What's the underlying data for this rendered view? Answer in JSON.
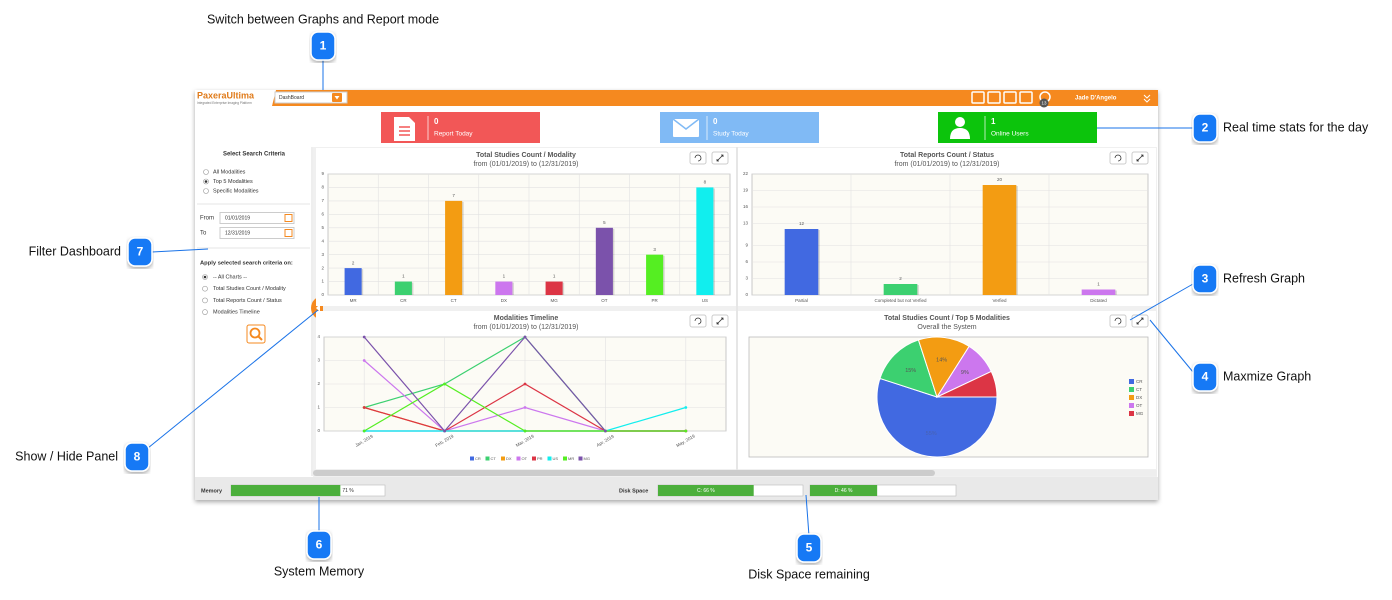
{
  "callouts": [
    {
      "number": "1",
      "text": "Switch between Graphs and Report mode"
    },
    {
      "number": "2",
      "text": "Real time stats for the day"
    },
    {
      "number": "3",
      "text": "Refresh Graph"
    },
    {
      "number": "4",
      "text": "Maxmize Graph"
    },
    {
      "number": "5",
      "text": "Disk Space remaining"
    },
    {
      "number": "6",
      "text": "System Memory"
    },
    {
      "number": "7",
      "text": "Filter Dashboard"
    },
    {
      "number": "8",
      "text": "Show / Hide Panel"
    }
  ],
  "header": {
    "logo": "PaxeraUltima",
    "tagline": "Integrated Enterprise Imaging Platform",
    "mode": "DashBoard",
    "user": "Jade D'Angelo",
    "badge": "13"
  },
  "stats": [
    {
      "value": 0,
      "label": "Report Today",
      "color": "#f25757"
    },
    {
      "value": 0,
      "label": "Study Today",
      "color": "#80baf5"
    },
    {
      "value": 1,
      "label": "Online Users",
      "color": "#0cc40c"
    }
  ],
  "sidebar": {
    "title": "Select Search Criteria",
    "criteria": [
      "All Modalities",
      "Top 5 Modalities",
      "Specific Modalities"
    ],
    "criteria_selected": 1,
    "from_label": "From",
    "from": "01/01/2019",
    "to_label": "To",
    "to": "12/31/2019",
    "apply_title": "Apply selected search criteria on:",
    "apply_options": [
      "-- All Charts --",
      "Total Studies Count / Modality",
      "Total Reports Count / Status",
      "Modalities Timeline"
    ],
    "apply_selected": 0
  },
  "charts": [
    {
      "type": "bar",
      "title": "Total Studies Count / Modality",
      "subtitle": "from (01/01/2019) to (12/31/2019)",
      "categories": [
        "MR",
        "CR",
        "CT",
        "DX",
        "MG",
        "OT",
        "PR",
        "US"
      ],
      "values": [
        2,
        1,
        7,
        1,
        1,
        5,
        3,
        8
      ],
      "colors": [
        "#4169e1",
        "#3cd070",
        "#f39c12",
        "#cc77ee",
        "#dc3545",
        "#7b52ab",
        "#55ee22",
        "#11eeee"
      ],
      "ylim": [
        0,
        9
      ],
      "yticks": [
        0,
        1,
        2,
        3,
        4,
        5,
        6,
        7,
        8,
        9
      ]
    },
    {
      "type": "bar",
      "title": "Total Reports Count / Status",
      "subtitle": "from (01/01/2019) to (12/31/2019)",
      "categories": [
        "Partial",
        "Completed but not Verfied",
        "Verfied",
        "Dictated"
      ],
      "values": [
        12,
        2,
        20,
        1
      ],
      "colors": [
        "#4169e1",
        "#3cd070",
        "#f39c12",
        "#cc77ee"
      ],
      "ylim": [
        0,
        22
      ],
      "yticks": [
        0,
        3,
        6,
        9,
        13,
        16,
        19,
        22
      ]
    },
    {
      "type": "line",
      "title": "Modalities Timeline",
      "subtitle": "from (01/01/2019) to (12/31/2019)",
      "categories": [
        "Jan, 2019",
        "Feb, 2019",
        "Mar, 2019",
        "Apr, 2019",
        "May, 2019"
      ],
      "ylim": [
        0,
        4
      ],
      "yticks": [
        0,
        1,
        2,
        3,
        4
      ],
      "series": [
        {
          "name": "CR",
          "color": "#4169e1",
          "values": [
            0,
            0,
            0,
            0,
            0
          ]
        },
        {
          "name": "CT",
          "color": "#3cd070",
          "values": [
            1,
            2,
            4,
            0,
            0
          ]
        },
        {
          "name": "DX",
          "color": "#f39c12",
          "values": [
            1,
            0,
            0,
            0,
            0
          ]
        },
        {
          "name": "OT",
          "color": "#cc77ee",
          "values": [
            3,
            0,
            1,
            0,
            0
          ]
        },
        {
          "name": "PR",
          "color": "#dc3545",
          "values": [
            1,
            0,
            2,
            0,
            0
          ]
        },
        {
          "name": "US",
          "color": "#11eeee",
          "values": [
            0,
            0,
            0,
            0,
            1
          ]
        },
        {
          "name": "MR",
          "color": "#55ee22",
          "values": [
            0,
            2,
            0,
            0,
            0
          ]
        },
        {
          "name": "MG",
          "color": "#7b52ab",
          "values": [
            4,
            0,
            4,
            0,
            null
          ]
        }
      ]
    },
    {
      "type": "pie",
      "title": "Total Studies Count / Top 5 Modalities",
      "subtitle": "Overall the System",
      "categories": [
        "CR",
        "CT",
        "DX",
        "OT",
        "MG"
      ],
      "values": [
        55,
        15,
        14,
        9,
        7
      ],
      "value_labels": [
        "55%",
        "15%",
        "14%",
        "9%",
        null
      ],
      "colors": [
        "#4169e1",
        "#3cd070",
        "#f39c12",
        "#cc77ee",
        "#dc3545"
      ]
    }
  ],
  "footer": {
    "memory_label": "Memory",
    "memory": {
      "value": 71,
      "value_label": "71 %"
    },
    "disk_label": "Disk Space",
    "disks": [
      {
        "value": 66,
        "value_label": "C: 66 %"
      },
      {
        "value": 46,
        "value_label": "D: 46 %"
      }
    ]
  }
}
